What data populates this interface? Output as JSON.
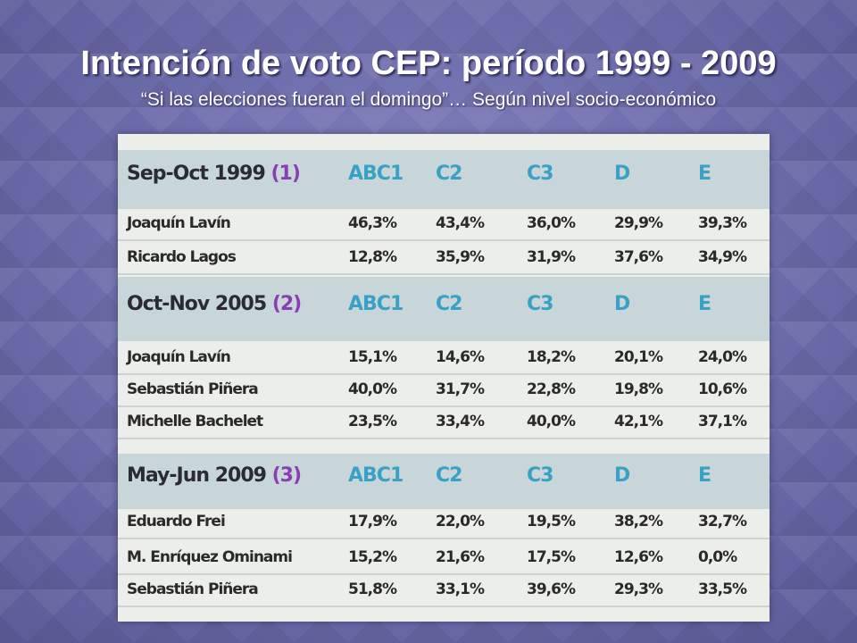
{
  "slide": {
    "title": "Intención de voto CEP: período 1999 - 2009",
    "subtitle": "“Si las elecciones fueran el domingo”… Según nivel socio-económico"
  },
  "columns": [
    "ABC1",
    "C2",
    "C3",
    "D",
    "E"
  ],
  "sections": [
    {
      "period": "Sep-Oct 1999",
      "ref": "(1)",
      "rows": [
        {
          "name": "Joaquín Lavín",
          "values": [
            "46,3%",
            "43,4%",
            "36,0%",
            "29,9%",
            "39,3%"
          ]
        },
        {
          "name": "Ricardo Lagos",
          "values": [
            "12,8%",
            "35,9%",
            "31,9%",
            "37,6%",
            "34,9%"
          ]
        }
      ]
    },
    {
      "period": "Oct-Nov 2005",
      "ref": "(2)",
      "rows": [
        {
          "name": "Joaquín Lavín",
          "values": [
            "15,1%",
            "14,6%",
            "18,2%",
            "20,1%",
            "24,0%"
          ]
        },
        {
          "name": "Sebastián Piñera",
          "values": [
            "40,0%",
            "31,7%",
            "22,8%",
            "19,8%",
            "10,6%"
          ]
        },
        {
          "name": "Michelle Bachelet",
          "values": [
            "23,5%",
            "33,4%",
            "40,0%",
            "42,1%",
            "37,1%"
          ]
        }
      ]
    },
    {
      "period": "May-Jun 2009",
      "ref": "(3)",
      "rows": [
        {
          "name": "Eduardo Frei",
          "values": [
            "17,9%",
            "22,0%",
            "19,5%",
            "38,2%",
            "32,7%"
          ]
        },
        {
          "name": "M. Enríquez Ominami",
          "values": [
            "15,2%",
            "21,6%",
            "17,5%",
            "12,6%",
            "0,0%"
          ]
        },
        {
          "name": "Sebastián Piñera",
          "values": [
            "51,8%",
            "33,1%",
            "39,6%",
            "29,3%",
            "33,5%"
          ]
        }
      ]
    }
  ]
}
